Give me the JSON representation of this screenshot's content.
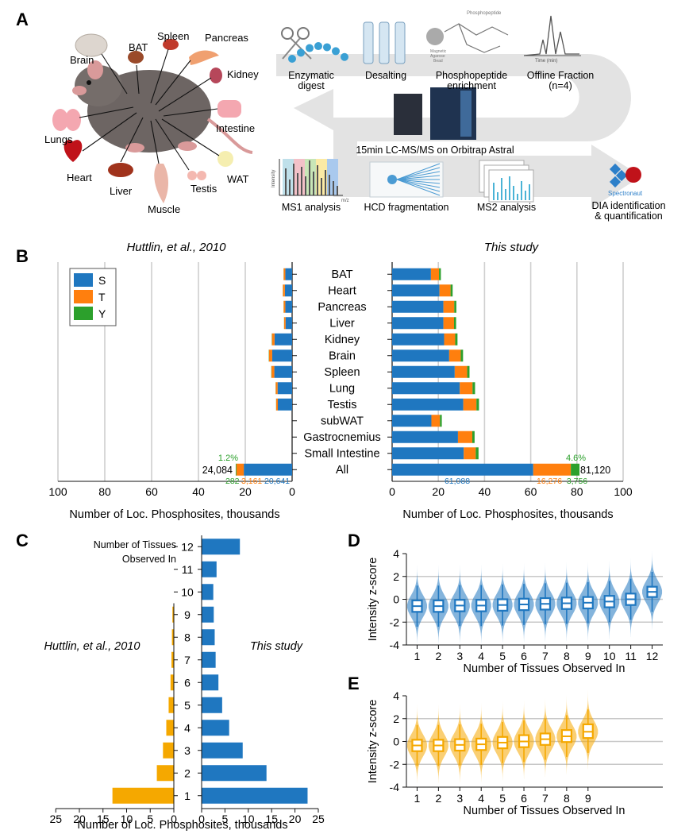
{
  "panel_labels": {
    "a": "A",
    "b": "B",
    "c": "C",
    "d": "D",
    "e": "E"
  },
  "panel_a": {
    "organs": [
      "Brain",
      "BAT",
      "Spleen",
      "Pancreas",
      "Kidney",
      "Lungs",
      "Intestine",
      "Heart",
      "Liver",
      "Muscle",
      "Testis",
      "WAT"
    ],
    "steps": {
      "digest": [
        "Enzymatic",
        "digest"
      ],
      "desalting": "Desalting",
      "enrichment": [
        "Phosphopeptide",
        "enrichment"
      ],
      "enrich_icon_small": "Phosphopeptide",
      "bead_label": [
        "Magnetic",
        "Agarose",
        "Bead"
      ],
      "fraction": [
        "Offline Fraction",
        "(n=4)"
      ],
      "fraction_axis": "Time (min)",
      "lcms": "15min LC-MS/MS on Orbitrap Astral",
      "ms1": "MS1 analysis",
      "ms1_y": "Intensity",
      "ms1_x": "m/z",
      "hcd": "HCD fragmentation",
      "ms2": "MS2 analysis",
      "spectronaut": "Spectronaut",
      "dia": [
        "DIA identification",
        "& quantification"
      ]
    }
  },
  "chart_data": [
    {
      "id": "B",
      "type": "bar",
      "stacked": true,
      "orientation": "horizontal",
      "titles": {
        "left": "Huttlin, et al., 2010",
        "right": "This study"
      },
      "xlabel": "Number of Loc. Phosphosites, thousands",
      "xlim": [
        0,
        100
      ],
      "xticks": [
        "0",
        "20",
        "40",
        "60",
        "80",
        "100"
      ],
      "legend": [
        "S",
        "T",
        "Y"
      ],
      "colors": {
        "S": "#1f77c0",
        "T": "#ff7f0e",
        "Y": "#2ca02c"
      },
      "categories": [
        "BAT",
        "Heart",
        "Pancreas",
        "Liver",
        "Kidney",
        "Brain",
        "Spleen",
        "Lung",
        "Testis",
        "subWAT",
        "Gastrocnemius",
        "Small Intestine",
        "All"
      ],
      "huttlin": {
        "S": [
          2.9,
          3.1,
          2.9,
          2.8,
          7.5,
          8.5,
          7.6,
          6.2,
          6.1,
          null,
          null,
          null,
          20.641
        ],
        "T": [
          0.7,
          0.8,
          0.7,
          0.6,
          1.1,
          1.4,
          1.2,
          0.8,
          0.7,
          null,
          null,
          null,
          3.161
        ],
        "Y": [
          0.05,
          0.05,
          0.05,
          0.05,
          0.1,
          0.1,
          0.1,
          0.05,
          0.05,
          null,
          null,
          null,
          0.282
        ]
      },
      "this_study": {
        "S": [
          16.8,
          20.5,
          22.2,
          22.2,
          22.5,
          24.7,
          27.1,
          29.3,
          30.8,
          17.0,
          28.5,
          31.0,
          61.088
        ],
        "T": [
          3.5,
          4.8,
          4.7,
          4.6,
          4.8,
          5.0,
          5.4,
          5.5,
          5.7,
          3.7,
          6.2,
          5.2,
          16.276
        ],
        "Y": [
          0.8,
          0.9,
          0.9,
          0.9,
          1.0,
          1.0,
          1.0,
          1.1,
          1.1,
          0.8,
          1.0,
          1.2,
          3.756
        ]
      },
      "annotations": {
        "huttlin_total": "24,084",
        "huttlin_pct": "1.2%",
        "huttlin_S": "20,641",
        "huttlin_T": "3,161",
        "huttlin_Y": "282",
        "study_total": "81,120",
        "study_pct": "4.6%",
        "study_S": "61,088",
        "study_T": "16,276",
        "study_Y": "3,756"
      }
    },
    {
      "id": "C",
      "type": "bar",
      "orientation": "horizontal",
      "xlabel": "Number of Loc. Phosphosites, thousands",
      "ylabel_lines": [
        "Number of Tissues",
        "Observed In"
      ],
      "labels": {
        "left": "Huttlin, et al., 2010",
        "right": "This study"
      },
      "colors": {
        "huttlin": "#f5a800",
        "study": "#1f77c0"
      },
      "categories": [
        "12",
        "11",
        "10",
        "9",
        "8",
        "7",
        "6",
        "5",
        "4",
        "3",
        "2",
        "1"
      ],
      "huttlin": [
        0,
        0,
        0,
        0.3,
        0.4,
        0.5,
        0.7,
        1.1,
        1.6,
        2.3,
        3.6,
        13.0
      ],
      "this_study": [
        8.2,
        3.2,
        2.5,
        2.6,
        2.8,
        3.0,
        3.6,
        4.4,
        5.9,
        8.8,
        13.9,
        22.7
      ],
      "xticks_left": [
        "25",
        "20",
        "15",
        "10",
        "5",
        "0"
      ],
      "xticks_right": [
        "0",
        "5",
        "10",
        "15",
        "20",
        "25"
      ],
      "xlim": [
        0,
        25
      ]
    },
    {
      "id": "D",
      "type": "violin",
      "ylabel": "Intensity z-score",
      "xlabel": "Number of Tissues Observed In",
      "ylim": [
        -4,
        4
      ],
      "yticks": [
        "4",
        "2",
        "0",
        "-2",
        "-4"
      ],
      "color": "#1f77c0",
      "categories": [
        "1",
        "2",
        "3",
        "4",
        "5",
        "6",
        "7",
        "8",
        "9",
        "10",
        "11",
        "12"
      ],
      "medians": [
        -0.6,
        -0.6,
        -0.55,
        -0.55,
        -0.5,
        -0.45,
        -0.4,
        -0.35,
        -0.3,
        -0.2,
        0.0,
        0.65
      ],
      "q1": [
        -1.1,
        -1.1,
        -1.05,
        -1.05,
        -1.0,
        -0.95,
        -0.9,
        -0.85,
        -0.8,
        -0.7,
        -0.5,
        0.2
      ],
      "q3": [
        -0.1,
        -0.1,
        -0.05,
        -0.05,
        0.0,
        0.05,
        0.1,
        0.15,
        0.2,
        0.3,
        0.5,
        1.1
      ]
    },
    {
      "id": "E",
      "type": "violin",
      "ylabel": "Intensity z-score",
      "xlabel": "Number of Tissues Observed In",
      "ylim": [
        -4,
        4
      ],
      "yticks": [
        "4",
        "2",
        "0",
        "-2",
        "-4"
      ],
      "color": "#f5a800",
      "categories": [
        "1",
        "2",
        "3",
        "4",
        "5",
        "6",
        "7",
        "8",
        "9"
      ],
      "medians": [
        -0.35,
        -0.35,
        -0.3,
        -0.25,
        -0.1,
        0.0,
        0.2,
        0.45,
        0.85
      ],
      "q1": [
        -0.85,
        -0.85,
        -0.8,
        -0.75,
        -0.6,
        -0.5,
        -0.3,
        -0.05,
        0.3
      ],
      "q3": [
        0.15,
        0.15,
        0.2,
        0.25,
        0.4,
        0.55,
        0.7,
        1.0,
        1.5
      ]
    }
  ]
}
